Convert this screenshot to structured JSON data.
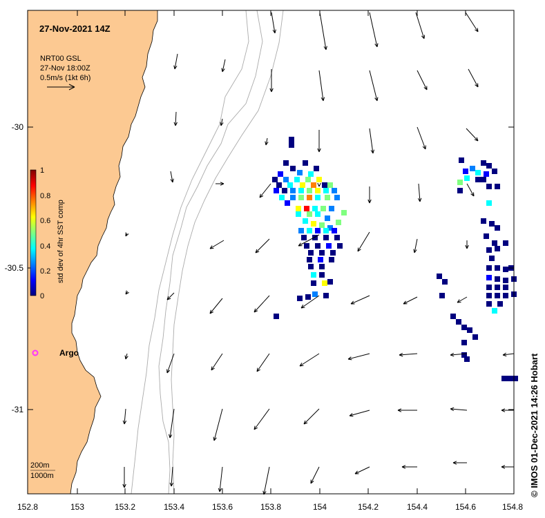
{
  "header": {
    "title": "27-Nov-2021 14Z"
  },
  "legend": {
    "product": "NRT00 GSL",
    "time": "27-Nov 18:00Z",
    "scale": "0.5m/s (1kt 6h)"
  },
  "colorbar": {
    "label": "std dev of 4hr SST comp",
    "ticks": [
      "0",
      "0.2",
      "0.4",
      "0.6",
      "0.8",
      "1"
    ],
    "colors": [
      "#00007f",
      "#0000ff",
      "#0080ff",
      "#00ffff",
      "#80ff80",
      "#ffff00",
      "#ff8000",
      "#ff0000",
      "#800000"
    ]
  },
  "axes": {
    "x_ticks": [
      "152.8",
      "153",
      "153.2",
      "153.4",
      "153.6",
      "153.8",
      "154",
      "154.2",
      "154.4",
      "154.6",
      "154.8"
    ],
    "y_ticks": [
      "-30",
      "-30.5",
      "-31"
    ]
  },
  "contours": {
    "depth_200": "200m",
    "depth_1000": "1000m"
  },
  "marker": {
    "label": "Argo",
    "color": "#ff33ff"
  },
  "credit": "© IMOS 01-Dec-2021 14:26 Hobart",
  "colors": {
    "land": "#fcc992",
    "contour": "#aaaaaa"
  }
}
